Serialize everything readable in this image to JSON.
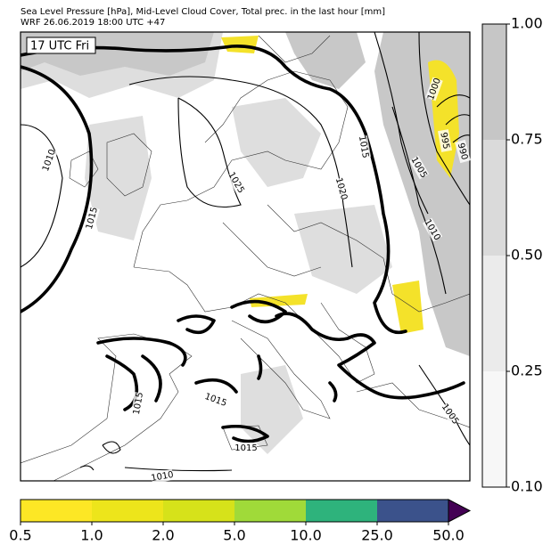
{
  "header": {
    "title": "Sea Level Pressure [hPa], Mid-Level Cloud Cover, Total prec. in the last hour [mm]",
    "subtitle": "WRF 26.06.2019 18:00 UTC +47"
  },
  "map": {
    "time_label": "17 UTC Fri",
    "isobar_labels": [
      "1010",
      "1015",
      "1025",
      "1020",
      "1015",
      "1005",
      "1010",
      "1000",
      "995",
      "990",
      "1015",
      "1015",
      "1015",
      "1005",
      "1010"
    ]
  },
  "cloud_colorbar": {
    "labels": [
      "0.10",
      "0.25",
      "0.50",
      "0.75",
      "1.00"
    ],
    "colors": [
      "#f7f7f7",
      "#ebebeb",
      "#dadada",
      "#c6c6c6"
    ]
  },
  "precip_colorbar": {
    "labels": [
      "0.5",
      "1.0",
      "2.0",
      "5.0",
      "10.0",
      "25.0",
      "50.0"
    ],
    "colors": [
      "#fde725",
      "#ede51b",
      "#d6e21a",
      "#a0da39",
      "#2eb37c",
      "#3b528b"
    ],
    "extend_color": "#440154"
  }
}
